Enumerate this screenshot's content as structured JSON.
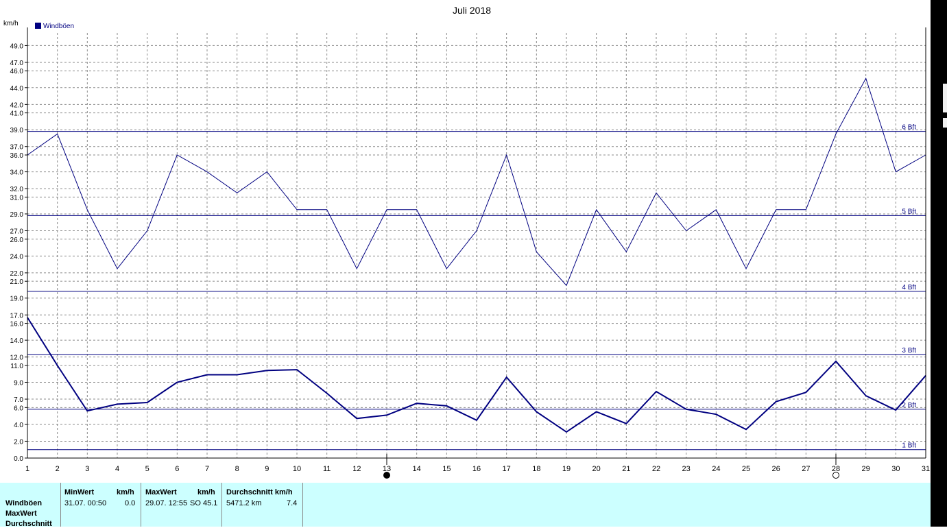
{
  "chart_data": {
    "type": "line",
    "title": "Juli 2018",
    "ylabel": "km/h",
    "x": [
      1,
      2,
      3,
      4,
      5,
      6,
      7,
      8,
      9,
      10,
      11,
      12,
      13,
      14,
      15,
      16,
      17,
      18,
      19,
      20,
      21,
      22,
      23,
      24,
      25,
      26,
      27,
      28,
      29,
      30,
      31
    ],
    "ylim": [
      0,
      50.5
    ],
    "y_ticks": [
      0.0,
      2.0,
      4.0,
      6.0,
      7.0,
      9.0,
      11.0,
      12.0,
      14.0,
      16.0,
      17.0,
      19.0,
      21.0,
      22.0,
      24.0,
      26.0,
      27.0,
      29.0,
      31.0,
      32.0,
      34.0,
      36.0,
      37.0,
      39.0,
      41.0,
      42.0,
      44.0,
      46.0,
      47.0,
      49.0
    ],
    "legend": "Windböen",
    "series": [
      {
        "name": "Windböen",
        "role": "max",
        "color": "#000080",
        "width": 1,
        "values": [
          36.0,
          38.5,
          29.5,
          22.5,
          27.0,
          36.0,
          34.0,
          31.5,
          34.0,
          29.5,
          29.5,
          22.5,
          29.5,
          29.5,
          22.5,
          27.0,
          36.0,
          24.5,
          20.5,
          29.5,
          24.5,
          31.5,
          27.0,
          29.5,
          22.5,
          29.5,
          29.5,
          38.5,
          45.1,
          34.0,
          36.0
        ]
      },
      {
        "name": "",
        "role": "avg",
        "color": "#000080",
        "width": 2,
        "values": [
          16.7,
          11.0,
          5.6,
          6.4,
          6.6,
          9.0,
          9.9,
          9.9,
          10.4,
          10.5,
          7.7,
          4.7,
          5.1,
          6.5,
          6.2,
          4.5,
          9.6,
          5.5,
          3.1,
          5.5,
          4.1,
          7.9,
          5.8,
          5.2,
          3.4,
          6.7,
          7.8,
          11.5,
          7.4,
          5.7,
          9.8
        ]
      }
    ],
    "beaufort_lines": [
      {
        "label": "1 Bft",
        "value": 1.0
      },
      {
        "label": "2 Bft",
        "value": 5.8
      },
      {
        "label": "3 Bft",
        "value": 12.3
      },
      {
        "label": "4 Bft",
        "value": 19.8
      },
      {
        "label": "5 Bft",
        "value": 28.8
      },
      {
        "label": "6 Bft",
        "value": 38.8
      }
    ],
    "moon_markers": [
      {
        "day": 13,
        "phase": "new"
      },
      {
        "day": 28,
        "phase": "full"
      }
    ],
    "grid": true
  },
  "stats": {
    "row_labels": [
      "Windböen",
      "MaxWert",
      "Durchschnitt"
    ],
    "min_header": "MinWert",
    "unit_header": "km/h",
    "max_header": "MaxWert",
    "avg_header": "Durchschnitt km/h",
    "min_date": "31.07.  00:50",
    "min_value": "0.0",
    "max_date": "29.07.  12:55",
    "max_dir": "SO",
    "max_value": "45.1",
    "avg_distance": "5471.2 km",
    "avg_value": "7.4"
  }
}
